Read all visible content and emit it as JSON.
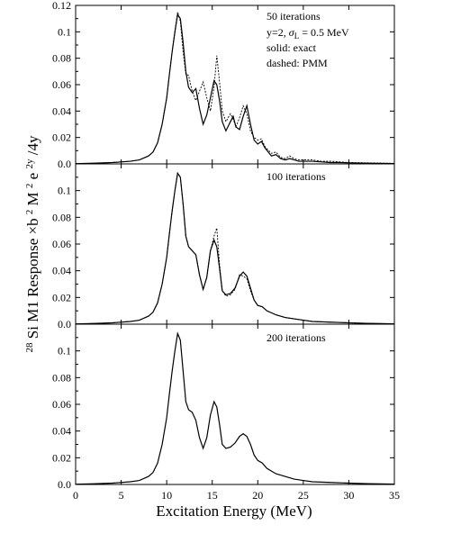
{
  "chart_data": {
    "type": "line",
    "xlabel": "Excitation Energy (MeV)",
    "ylabel": {
      "pre": "28",
      "main": "Si M1 Response ×b",
      "sup1": "2",
      "mid": " M",
      "sup2": "2",
      "mid2": " e",
      "sup3": "2y",
      "tail": "/4y"
    },
    "xlim": [
      0,
      35
    ],
    "ylim": [
      0,
      0.12
    ],
    "x_ticks": [
      0,
      5,
      10,
      15,
      20,
      25,
      30,
      35
    ],
    "y_ticks": [
      "0.0",
      "0.02",
      "0.04",
      "0.06",
      "0.08",
      "0.1",
      "0.12"
    ],
    "panels": [
      {
        "annotations": [
          "50 iterations",
          "y=2,",
          "= 0.5 MeV",
          "solid: exact",
          "dashed: PMM"
        ],
        "sigma": {
          "symbol": "σ",
          "sub": "L"
        },
        "series": [
          {
            "style": "solid",
            "x": [
              0,
              2,
              4,
              6,
              7,
              8,
              8.5,
              9,
              9.5,
              10,
              10.3,
              10.6,
              10.9,
              11.2,
              11.5,
              11.8,
              12.1,
              12.4,
              12.8,
              13.2,
              13.6,
              14,
              14.4,
              14.8,
              15.2,
              15.5,
              15.8,
              16.1,
              16.5,
              17,
              17.3,
              17.6,
              18,
              18.4,
              18.8,
              19.2,
              19.6,
              20,
              20.4,
              20.8,
              21.5,
              22,
              22.5,
              23,
              23.5,
              24,
              24.5,
              25,
              26,
              27,
              28,
              29,
              30,
              32,
              35
            ],
            "y": [
              0.0002,
              0.0005,
              0.001,
              0.002,
              0.003,
              0.006,
              0.009,
              0.016,
              0.03,
              0.05,
              0.068,
              0.085,
              0.1,
              0.113,
              0.11,
              0.092,
              0.07,
              0.058,
              0.054,
              0.057,
              0.042,
              0.03,
              0.037,
              0.05,
              0.063,
              0.06,
              0.048,
              0.032,
              0.025,
              0.032,
              0.036,
              0.028,
              0.026,
              0.036,
              0.044,
              0.03,
              0.018,
              0.015,
              0.017,
              0.012,
              0.006,
              0.007,
              0.004,
              0.003,
              0.004,
              0.003,
              0.002,
              0.002,
              0.002,
              0.0015,
              0.001,
              0.001,
              0.0008,
              0.0005,
              0.0003
            ]
          },
          {
            "style": "dashed",
            "x": [
              0,
              2,
              4,
              6,
              7,
              8,
              8.5,
              9,
              9.5,
              10,
              10.3,
              10.6,
              10.9,
              11.2,
              11.5,
              11.8,
              12.1,
              12.4,
              12.8,
              13.2,
              13.6,
              14,
              14.4,
              14.8,
              15.2,
              15.5,
              15.8,
              16.1,
              16.5,
              17,
              17.3,
              17.6,
              18,
              18.4,
              18.8,
              19.2,
              19.6,
              20,
              20.4,
              20.8,
              21.5,
              22,
              22.5,
              23,
              23.5,
              24,
              24.5,
              25,
              26,
              27,
              28,
              29,
              30,
              32,
              35
            ],
            "y": [
              0.0002,
              0.0005,
              0.001,
              0.002,
              0.003,
              0.006,
              0.009,
              0.016,
              0.03,
              0.05,
              0.068,
              0.085,
              0.1,
              0.115,
              0.108,
              0.085,
              0.068,
              0.067,
              0.055,
              0.048,
              0.055,
              0.062,
              0.05,
              0.04,
              0.058,
              0.082,
              0.062,
              0.04,
              0.032,
              0.038,
              0.034,
              0.028,
              0.035,
              0.044,
              0.038,
              0.025,
              0.02,
              0.018,
              0.019,
              0.013,
              0.008,
              0.009,
              0.005,
              0.004,
              0.006,
              0.004,
              0.003,
              0.003,
              0.003,
              0.002,
              0.002,
              0.0015,
              0.001,
              0.0008,
              0.0004
            ]
          }
        ]
      },
      {
        "annotations": [
          "100 iterations"
        ],
        "series": [
          {
            "style": "solid",
            "x": [
              0,
              2,
              4,
              6,
              7,
              8,
              8.5,
              9,
              9.5,
              10,
              10.3,
              10.6,
              10.9,
              11.2,
              11.5,
              11.8,
              12.1,
              12.4,
              12.8,
              13.2,
              13.6,
              14,
              14.4,
              14.8,
              15.2,
              15.5,
              15.8,
              16.1,
              16.5,
              17,
              17.5,
              18,
              18.4,
              18.8,
              19.2,
              19.6,
              20,
              20.5,
              21,
              22,
              23,
              24,
              25,
              26,
              28,
              30,
              32,
              35
            ],
            "y": [
              0.0002,
              0.0005,
              0.001,
              0.002,
              0.003,
              0.006,
              0.009,
              0.016,
              0.03,
              0.05,
              0.068,
              0.085,
              0.1,
              0.113,
              0.11,
              0.09,
              0.066,
              0.058,
              0.055,
              0.052,
              0.037,
              0.026,
              0.035,
              0.055,
              0.063,
              0.058,
              0.042,
              0.025,
              0.022,
              0.023,
              0.027,
              0.036,
              0.039,
              0.036,
              0.027,
              0.018,
              0.014,
              0.013,
              0.01,
              0.007,
              0.005,
              0.004,
              0.003,
              0.002,
              0.0015,
              0.001,
              0.0006,
              0.0003
            ]
          },
          {
            "style": "dashed",
            "x": [
              0,
              2,
              4,
              6,
              7,
              8,
              8.5,
              9,
              9.5,
              10,
              10.3,
              10.6,
              10.9,
              11.2,
              11.5,
              11.8,
              12.1,
              12.4,
              12.8,
              13.2,
              13.6,
              14,
              14.4,
              14.8,
              15.2,
              15.5,
              15.8,
              16.1,
              16.5,
              17,
              17.5,
              18,
              18.4,
              18.8,
              19.2,
              19.6,
              20,
              20.5,
              21,
              22,
              23,
              24,
              25,
              26,
              28,
              30,
              32,
              35
            ],
            "y": [
              0.0002,
              0.0005,
              0.001,
              0.002,
              0.003,
              0.006,
              0.009,
              0.016,
              0.03,
              0.05,
              0.068,
              0.085,
              0.1,
              0.113,
              0.11,
              0.09,
              0.066,
              0.058,
              0.055,
              0.052,
              0.037,
              0.026,
              0.035,
              0.055,
              0.066,
              0.072,
              0.045,
              0.025,
              0.021,
              0.022,
              0.026,
              0.037,
              0.036,
              0.034,
              0.025,
              0.018,
              0.014,
              0.013,
              0.01,
              0.007,
              0.005,
              0.004,
              0.003,
              0.002,
              0.0015,
              0.001,
              0.0006,
              0.0003
            ]
          }
        ]
      },
      {
        "annotations": [
          "200 iterations"
        ],
        "series": [
          {
            "style": "solid",
            "x": [
              0,
              2,
              4,
              6,
              7,
              8,
              8.5,
              9,
              9.5,
              10,
              10.3,
              10.6,
              10.9,
              11.2,
              11.5,
              11.8,
              12.1,
              12.4,
              12.8,
              13.2,
              13.6,
              14,
              14.4,
              14.8,
              15.2,
              15.5,
              15.8,
              16.1,
              16.5,
              17,
              17.5,
              18,
              18.4,
              18.8,
              19.2,
              19.6,
              20,
              20.5,
              21,
              22,
              23,
              24,
              25,
              26,
              28,
              30,
              32,
              35
            ],
            "y": [
              0.0002,
              0.0005,
              0.001,
              0.002,
              0.003,
              0.006,
              0.009,
              0.016,
              0.03,
              0.05,
              0.068,
              0.085,
              0.1,
              0.113,
              0.108,
              0.085,
              0.062,
              0.056,
              0.054,
              0.048,
              0.035,
              0.027,
              0.035,
              0.052,
              0.062,
              0.058,
              0.045,
              0.03,
              0.027,
              0.028,
              0.031,
              0.036,
              0.038,
              0.036,
              0.03,
              0.022,
              0.018,
              0.016,
              0.012,
              0.008,
              0.006,
              0.004,
              0.003,
              0.002,
              0.0015,
              0.001,
              0.0006,
              0.0003
            ]
          }
        ]
      }
    ]
  }
}
